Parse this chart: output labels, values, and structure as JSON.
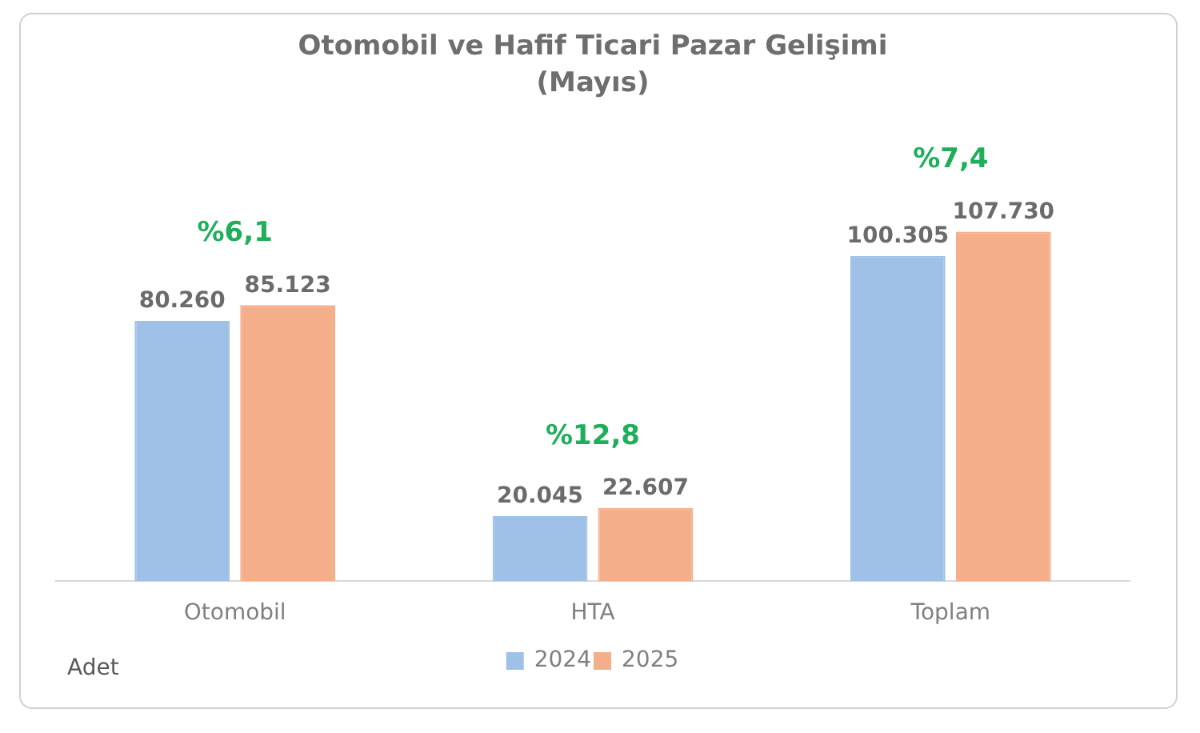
{
  "chart_data": {
    "type": "bar",
    "title": "Otomobil ve Hafif Ticari Pazar Gelişimi",
    "subtitle": "(Mayıs)",
    "categories": [
      "Otomobil",
      "HTA",
      "Toplam"
    ],
    "series": [
      {
        "name": "2024",
        "color": "#9fc1e7",
        "values": [
          80260,
          20045,
          100305
        ],
        "value_labels": [
          "80.260",
          "20.045",
          "100.305"
        ]
      },
      {
        "name": "2025",
        "color": "#f5ae8a",
        "values": [
          85123,
          22607,
          107730
        ],
        "value_labels": [
          "85.123",
          "22.607",
          "107.730"
        ]
      }
    ],
    "annotations": [
      "%6,1",
      "%12,8",
      "%7,4",
      "Adet"
    ],
    "legend": "bottom",
    "grid": false
  }
}
